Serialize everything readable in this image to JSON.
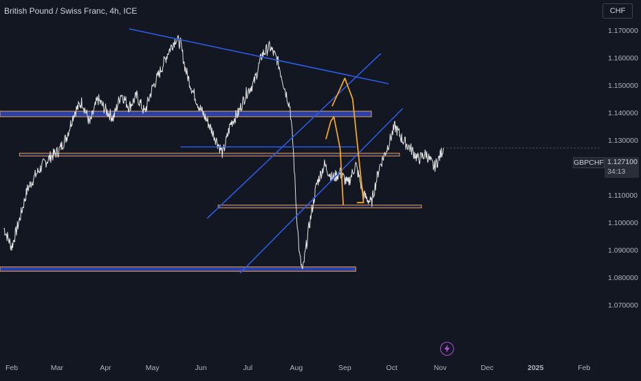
{
  "header": {
    "title": "British Pound / Swiss Franc, 4h, ICE",
    "currency_button": "CHF"
  },
  "price_tag": {
    "symbol": "GBPCHF",
    "price": "1.127100",
    "countdown": "34:13"
  },
  "colors": {
    "background": "#131722",
    "candles": "#e6e6e6",
    "trendline": "#2b5ce6",
    "zone_fill": "#2741a8",
    "zone_border": "#f0a04b",
    "projection": "#f5a623",
    "axis_text": "#b2b5be",
    "flash": "#b04fd8"
  },
  "icons": {
    "flash": "flash-icon"
  },
  "chart_data": {
    "type": "line",
    "title": "British Pound / Swiss Franc, 4h, ICE",
    "timeframe": "4h",
    "ylim": [
      1.065,
      1.175
    ],
    "y_ticks": [
      1.17,
      1.16,
      1.15,
      1.14,
      1.13,
      1.12,
      1.11,
      1.1,
      1.09,
      1.08,
      1.07
    ],
    "y_tick_labels": [
      "1.170000",
      "1.160000",
      "1.150000",
      "1.140000",
      "1.130000",
      "1.120000",
      "1.110000",
      "1.100000",
      "1.090000",
      "1.080000",
      "1.070000"
    ],
    "x_ticks": [
      "Feb",
      "Mar",
      "Apr",
      "May",
      "Jun",
      "Jul",
      "Aug",
      "Sep",
      "Oct",
      "Nov",
      "Dec",
      "2025",
      "Feb"
    ],
    "x_tick_days": [
      0,
      29,
      60,
      90,
      121,
      151,
      182,
      213,
      243,
      274,
      304,
      335,
      366
    ],
    "series": [
      {
        "x": [
          -5,
          0,
          5,
          10,
          15,
          20,
          25,
          30,
          35,
          40,
          45,
          50,
          55,
          60,
          65,
          70,
          75,
          80,
          85,
          90,
          95,
          100,
          105,
          108,
          111,
          115,
          120,
          125,
          130,
          135,
          140,
          145,
          150,
          155,
          160,
          165,
          170,
          175,
          178,
          180,
          182,
          184,
          186,
          190,
          195,
          200,
          205,
          210,
          215,
          220,
          225,
          230,
          235,
          240,
          245,
          250,
          255,
          260,
          265,
          270,
          273,
          276
        ],
        "values": [
          1.098,
          1.091,
          1.101,
          1.112,
          1.117,
          1.121,
          1.124,
          1.126,
          1.131,
          1.14,
          1.144,
          1.136,
          1.145,
          1.141,
          1.138,
          1.147,
          1.142,
          1.146,
          1.14,
          1.149,
          1.155,
          1.162,
          1.167,
          1.165,
          1.156,
          1.149,
          1.142,
          1.137,
          1.131,
          1.125,
          1.136,
          1.14,
          1.147,
          1.151,
          1.161,
          1.164,
          1.159,
          1.148,
          1.142,
          1.127,
          1.105,
          1.088,
          1.082,
          1.098,
          1.114,
          1.121,
          1.116,
          1.118,
          1.114,
          1.121,
          1.11,
          1.107,
          1.12,
          1.127,
          1.135,
          1.13,
          1.127,
          1.123,
          1.125,
          1.12,
          1.123,
          1.1271
        ]
      }
    ],
    "drawings": {
      "trendlines": [
        {
          "x": [
            75,
            241
          ],
          "y": [
            1.1705,
            1.1505
          ]
        },
        {
          "x": [
            125,
            236
          ],
          "y": [
            1.1015,
            1.1615
          ]
        },
        {
          "x": [
            146,
            250
          ],
          "y": [
            1.0815,
            1.1415
          ]
        },
        {
          "x": [
            108,
            220
          ],
          "y": [
            1.1275,
            1.1275
          ]
        }
      ],
      "zones": [
        {
          "x": [
            -10,
            230
          ],
          "y": [
            1.1385,
            1.1405
          ]
        },
        {
          "x": [
            5,
            248
          ],
          "y": [
            1.1242,
            1.1252
          ]
        },
        {
          "x": [
            132,
            262
          ],
          "y": [
            1.1053,
            1.1063
          ]
        },
        {
          "x": [
            -10,
            220
          ],
          "y": [
            1.0822,
            1.0838
          ]
        }
      ],
      "projections": [
        {
          "x": [
            205,
            210,
            213,
            218,
            225,
            221
          ],
          "y": [
            1.1425,
            1.1487,
            1.1525,
            1.145,
            1.1072,
            1.1072
          ]
        },
        {
          "x": [
            201,
            204,
            206,
            210,
            212
          ],
          "y": [
            1.1305,
            1.1368,
            1.1385,
            1.127,
            1.1065
          ]
        }
      ]
    }
  }
}
